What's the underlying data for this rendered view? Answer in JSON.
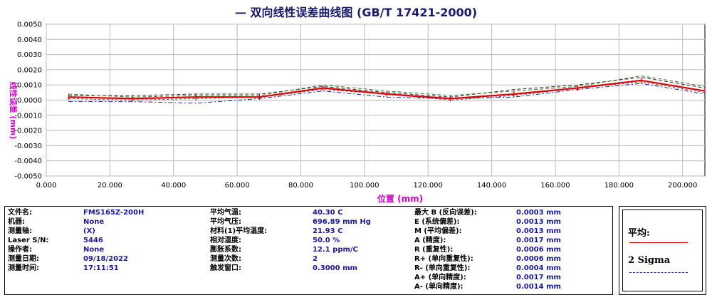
{
  "title": "— 双向线性误差曲线图  (GB/T 17421-2000)",
  "chart_data": {
    "type": "line",
    "xlabel": "位置 (mm)",
    "ylabel": "线性误差 (mm)",
    "xlim": [
      0,
      207
    ],
    "ylim": [
      -0.005,
      0.005
    ],
    "xticks": [
      "0.000",
      "20.000",
      "40.000",
      "60.000",
      "80.000",
      "100.000",
      "120.000",
      "140.000",
      "160.000",
      "180.000",
      "200.000"
    ],
    "yticks": [
      "0.0050",
      "0.0040",
      "0.0030",
      "0.0020",
      "0.0010",
      "0.0000",
      "-0.0010",
      "-0.0020",
      "-0.0030",
      "-0.0040",
      "-0.0050"
    ],
    "x": [
      7,
      27,
      47,
      67,
      87,
      107,
      127,
      147,
      167,
      187,
      207
    ],
    "series": [
      {
        "name": "平均",
        "values": [
          0.0002,
          0.0001,
          0.0002,
          0.0002,
          0.0008,
          0.0004,
          0.0001,
          0.0004,
          0.0008,
          0.0013,
          0.0006
        ]
      },
      {
        "values": [
          0.0003,
          0.0003,
          0.0004,
          0.0004,
          0.0009,
          0.0005,
          0.0002,
          0.0007,
          0.001,
          0.0015,
          0.0008
        ]
      },
      {
        "values": [
          0.0001,
          0.0,
          0.0001,
          0.0002,
          0.0007,
          0.0004,
          0.0,
          0.0003,
          0.0008,
          0.0012,
          0.0005
        ]
      },
      {
        "name": "2 Sigma",
        "values": [
          -0.0001,
          -0.0001,
          -0.0002,
          0.0001,
          0.0006,
          0.0002,
          0.0001,
          0.0002,
          0.0007,
          0.0011,
          0.0004
        ]
      },
      {
        "values": [
          0.0004,
          0.0002,
          0.0003,
          0.0003,
          0.001,
          0.0006,
          0.0003,
          0.0006,
          0.0009,
          0.0016,
          0.0009
        ]
      }
    ],
    "grid": true,
    "colors": {
      "mean": "#e00000",
      "band": "#2222aa",
      "grid": "#bbbbbb",
      "label": "#cc00cc"
    }
  },
  "info": {
    "col1": [
      {
        "label": "文件名:",
        "value": "FMS165Z-200H"
      },
      {
        "label": "机器:",
        "value": "None"
      },
      {
        "label": "测量轴:",
        "value": "(X)"
      },
      {
        "label": "Laser S/N:",
        "value": "5446"
      },
      {
        "label": "操作者:",
        "value": "None"
      },
      {
        "label": "测量日期:",
        "value": "09/18/2022"
      },
      {
        "label": "测量时间:",
        "value": "17:11:51"
      }
    ],
    "col2": [
      {
        "label": "平均气温:",
        "value": "40.30 C"
      },
      {
        "label": "平均气压:",
        "value": "696.89 mm Hg"
      },
      {
        "label": "材料(1)平均温度:",
        "value": "21.93 C"
      },
      {
        "label": "相对湿度:",
        "value": "50.0 %"
      },
      {
        "label": "膨胀系数:",
        "value": "12.1 ppm/C"
      },
      {
        "label": "测量次数:",
        "value": "2"
      },
      {
        "label": "触发窗口:",
        "value": "0.3000 mm"
      }
    ],
    "col3": [
      {
        "label": "最大 B (反向误差):",
        "value": "0.0003 mm"
      },
      {
        "label": "E (系统偏差):",
        "value": "0.0013 mm"
      },
      {
        "label": "M (平均偏差):",
        "value": "0.0013 mm"
      },
      {
        "label": "A (精度):",
        "value": "0.0017 mm"
      },
      {
        "label": "R (重复性):",
        "value": "0.0006 mm"
      },
      {
        "label": "R+ (单向重复性):",
        "value": "0.0006 mm"
      },
      {
        "label": "R- (单向重复性):",
        "value": "0.0004 mm"
      },
      {
        "label": "A+ (单向精度):",
        "value": "0.0017 mm"
      },
      {
        "label": "A- (单向精度):",
        "value": "0.0014 mm"
      }
    ]
  },
  "legend": {
    "mean_label": "平均:",
    "sigma_label": "2 Sigma"
  }
}
